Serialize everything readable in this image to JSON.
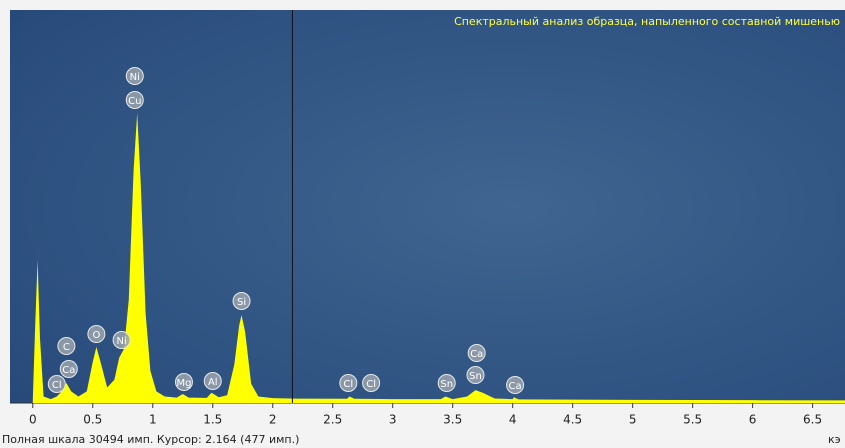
{
  "chart_data": {
    "type": "area",
    "title": "Спектральный анализ образца, напыленного составной мишенью",
    "status": "Полная шкала 30494 имп. Курсор: 2.164  (477 имп.)",
    "x_unit_label": "кэ",
    "cursor_x": 2.164,
    "x": [
      0,
      0.02,
      0.04,
      0.06,
      0.09,
      0.15,
      0.2,
      0.25,
      0.28,
      0.32,
      0.38,
      0.45,
      0.5,
      0.53,
      0.57,
      0.62,
      0.68,
      0.72,
      0.76,
      0.8,
      0.84,
      0.87,
      0.9,
      0.94,
      0.98,
      1.03,
      1.1,
      1.2,
      1.25,
      1.3,
      1.45,
      1.49,
      1.55,
      1.62,
      1.68,
      1.72,
      1.74,
      1.77,
      1.82,
      1.88,
      2.0,
      2.2,
      2.62,
      2.64,
      2.68,
      3.0,
      3.4,
      3.44,
      3.5,
      3.62,
      3.69,
      3.75,
      3.85,
      4.0,
      4.01,
      4.05,
      5,
      6,
      6.77
    ],
    "series": [
      {
        "color": "#ffff00",
        "values": [
          200,
          6000,
          11100,
          5000,
          500,
          300,
          500,
          1000,
          1550,
          900,
          500,
          900,
          3200,
          4350,
          3000,
          1200,
          1800,
          3500,
          4200,
          8000,
          18000,
          22500,
          17000,
          7000,
          2500,
          900,
          500,
          420,
          700,
          420,
          400,
          800,
          450,
          600,
          3000,
          6000,
          6830,
          5500,
          1500,
          500,
          380,
          340,
          330,
          500,
          330,
          300,
          300,
          500,
          300,
          500,
          1000,
          800,
          350,
          300,
          450,
          280,
          240,
          220,
          200
        ]
      }
    ],
    "element_labels": [
      {
        "text": "Ni",
        "x": 0.85
      },
      {
        "text": "Cu",
        "x": 0.85
      },
      {
        "text": "C",
        "x": 0.28
      },
      {
        "text": "Ca",
        "x": 0.3
      },
      {
        "text": "Cl",
        "x": 0.2
      },
      {
        "text": "O",
        "x": 0.53
      },
      {
        "text": "Ni",
        "x": 0.74
      },
      {
        "text": "Si",
        "x": 1.74
      },
      {
        "text": "Mg",
        "x": 1.26
      },
      {
        "text": "Al",
        "x": 1.5
      },
      {
        "text": "Cl",
        "x": 2.63
      },
      {
        "text": "Cl",
        "x": 2.82
      },
      {
        "text": "Sn",
        "x": 3.45
      },
      {
        "text": "Sn",
        "x": 3.69
      },
      {
        "text": "Ca",
        "x": 3.7
      },
      {
        "text": "Ca",
        "x": 4.02
      }
    ],
    "xlim": [
      -0.19,
      6.77
    ],
    "ylim": [
      0,
      30494
    ],
    "xticks": [
      0,
      0.5,
      1,
      1.5,
      2,
      2.5,
      3,
      3.5,
      4,
      4.5,
      5,
      5.5,
      6,
      6.5
    ]
  }
}
